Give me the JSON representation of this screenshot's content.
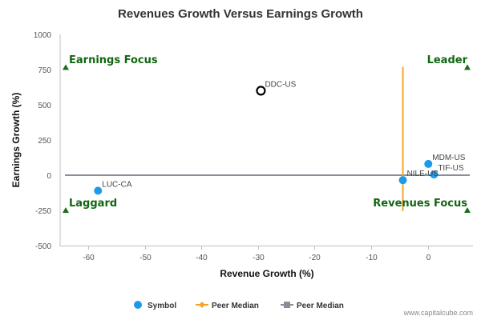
{
  "chart_data": {
    "type": "scatter",
    "title": "Revenues Growth Versus Earnings Growth",
    "xlabel": "Revenue Growth (%)",
    "ylabel": "Earnings Growth (%)",
    "xlim": [
      -65,
      8
    ],
    "ylim": [
      -500,
      1000
    ],
    "xticks": [
      -60,
      -50,
      -40,
      -30,
      -20,
      -10,
      0
    ],
    "yticks": [
      1000,
      750,
      500,
      250,
      0,
      -250,
      -500
    ],
    "points": [
      {
        "label": "DDC-US",
        "x": -29.5,
        "y": 600,
        "style": "hollow"
      },
      {
        "label": "LUC-CA",
        "x": -58.3,
        "y": -110,
        "style": "filled"
      },
      {
        "label": "MDM-US",
        "x": 0.1,
        "y": 80,
        "style": "filled"
      },
      {
        "label": "TIF-US",
        "x": 1.1,
        "y": 5,
        "style": "filled"
      },
      {
        "label": "NILE-US",
        "x": -4.4,
        "y": -35,
        "style": "filled"
      }
    ],
    "peer_median_x": -4.4,
    "peer_median_y": 0,
    "quadrants": {
      "top_left": "Earnings Focus",
      "top_right": "Leader",
      "bottom_left": "Laggard",
      "bottom_right": "Revenues Focus"
    },
    "legend": [
      {
        "name": "Symbol",
        "marker": "circle",
        "color": "#1e9be8"
      },
      {
        "name": "Peer Median",
        "marker": "diamond-line",
        "color": "#f7a42c"
      },
      {
        "name": "Peer Median",
        "marker": "square-line",
        "color": "#8a8e99"
      }
    ],
    "legend_position": "bottom-center",
    "grid": false,
    "credit": "www.capitalcube.com"
  },
  "colors": {
    "symbol": "#1e9be8",
    "peer_median_v": "#f7a42c",
    "peer_median_h": "#8a8e99",
    "quadrant_marker": "#1a6e1a"
  }
}
